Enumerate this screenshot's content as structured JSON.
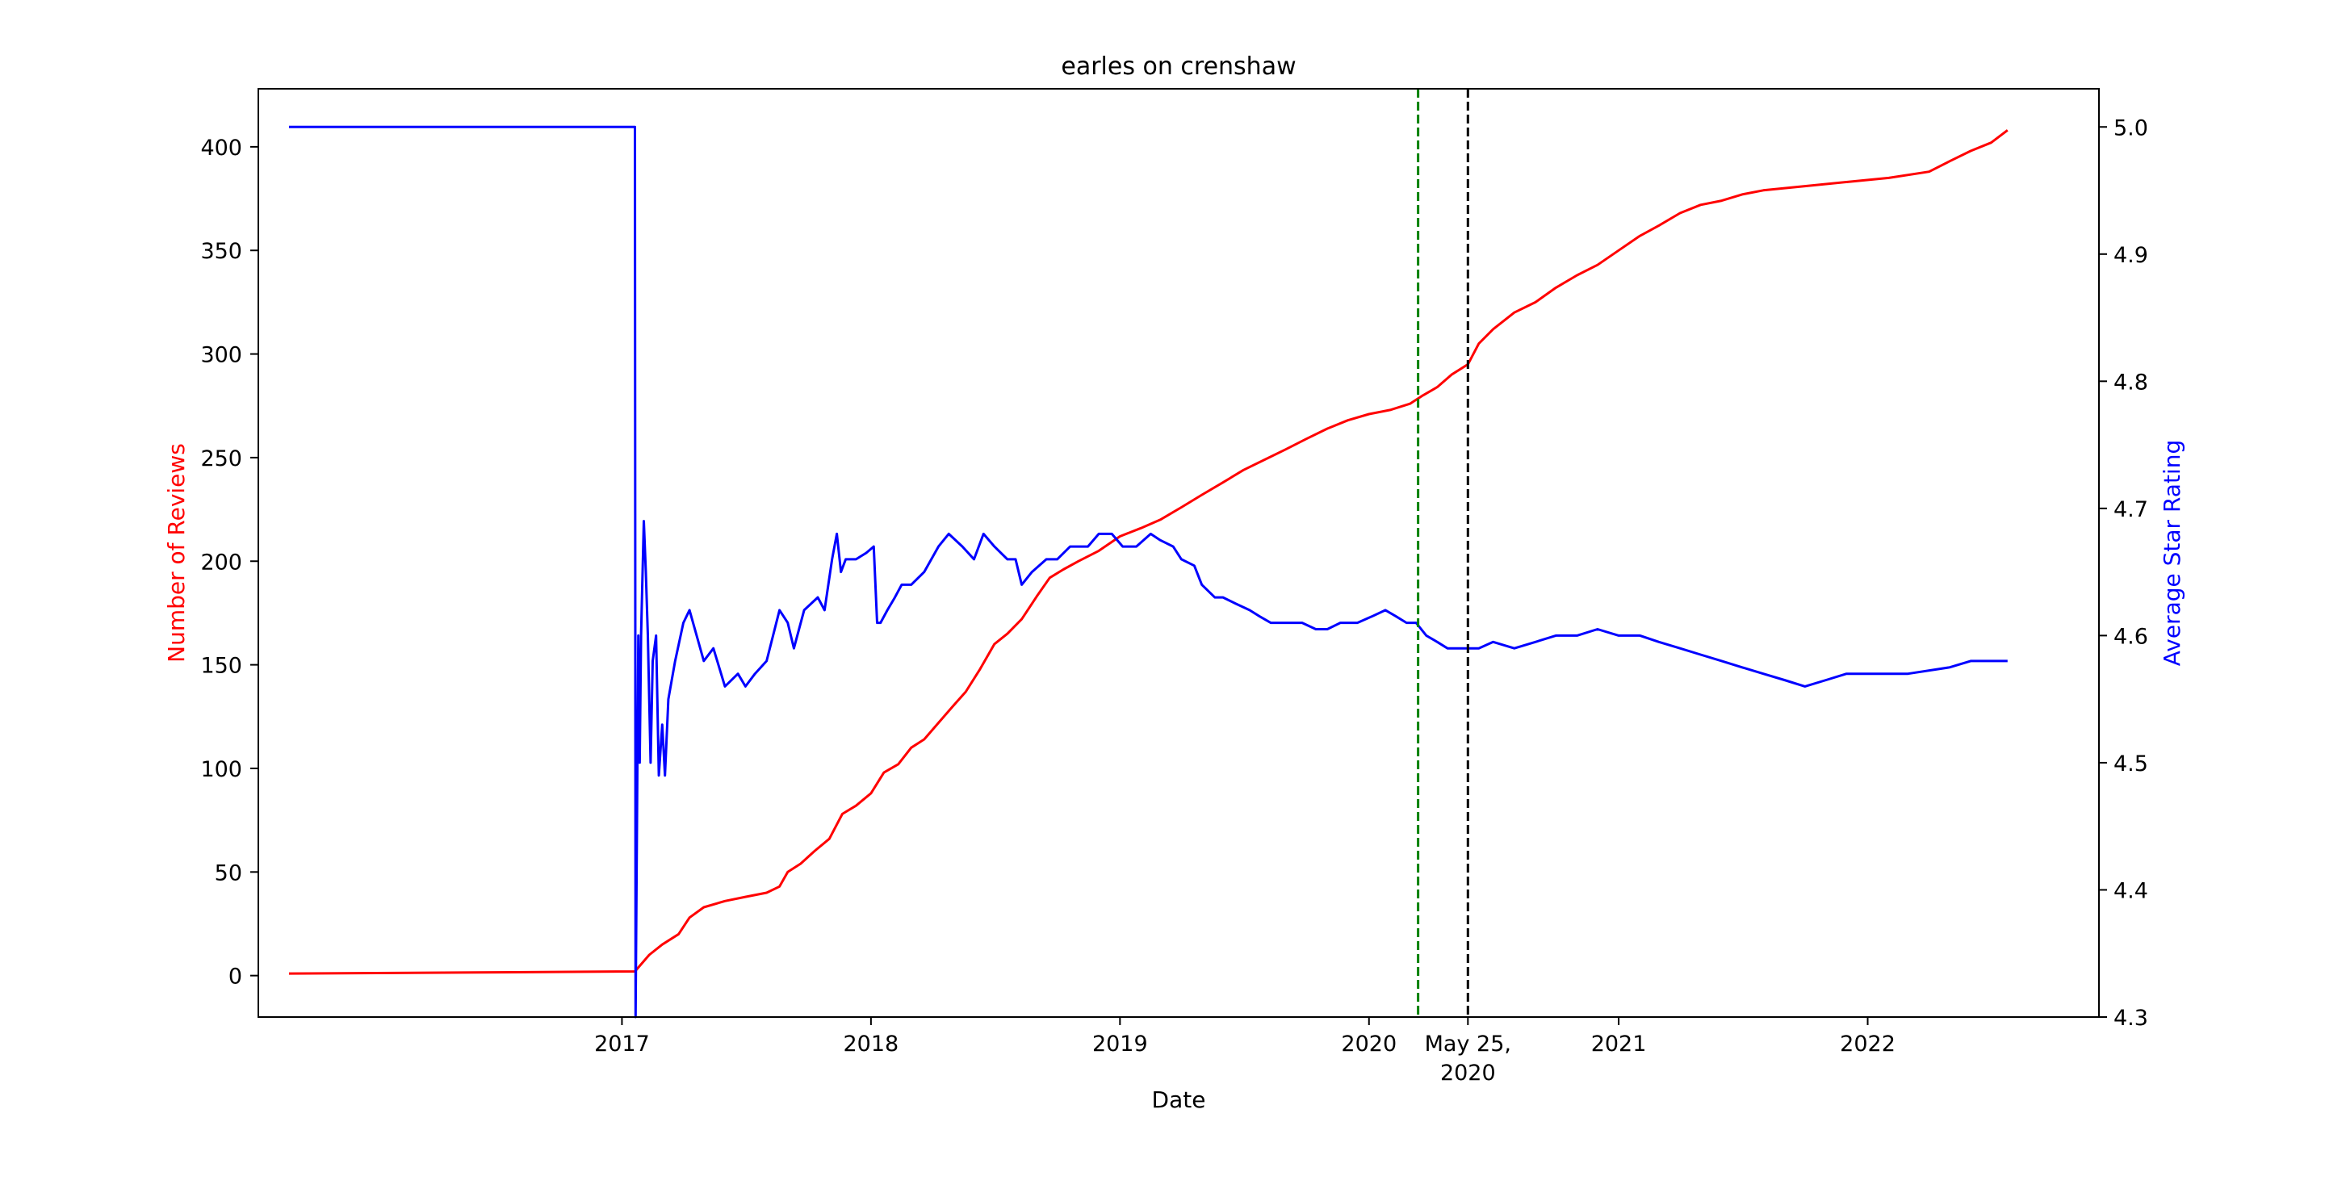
{
  "chart_data": {
    "type": "line",
    "title": "earles on crenshaw",
    "xlabel": "Date",
    "ylabel_left": "Number of Reviews",
    "ylabel_right": "Average Star Rating",
    "xlim": [
      "2015-07-18",
      "2022-12-06"
    ],
    "ylim_left": [
      -20,
      428
    ],
    "ylim_right": [
      4.3,
      5.03
    ],
    "x_ticks": [
      {
        "date": "2017-01-01",
        "label": "2017"
      },
      {
        "date": "2018-01-01",
        "label": "2018"
      },
      {
        "date": "2019-01-01",
        "label": "2019"
      },
      {
        "date": "2020-01-01",
        "label": "2020"
      },
      {
        "date": "2020-05-25",
        "label": "May 25,\n2020"
      },
      {
        "date": "2021-01-01",
        "label": "2021"
      },
      {
        "date": "2022-01-01",
        "label": "2022"
      }
    ],
    "y_ticks_left": [
      "0",
      "50",
      "100",
      "150",
      "200",
      "250",
      "300",
      "350",
      "400"
    ],
    "y_ticks_right": [
      "4.3",
      "4.4",
      "4.5",
      "4.6",
      "4.7",
      "4.8",
      "4.9",
      "5.0"
    ],
    "vlines": [
      {
        "date": "2020-03-13",
        "color": "#008000",
        "style": "dashed"
      },
      {
        "date": "2020-05-25",
        "color": "#000000",
        "style": "dashed"
      }
    ],
    "grid": false,
    "colors": {
      "reviews": "#ff0000",
      "rating": "#0000ff",
      "left_label": "#ff0000",
      "right_label": "#0000ff"
    },
    "series": [
      {
        "axis": "left",
        "color": "#ff0000",
        "points": [
          [
            "2015-09-01",
            1
          ],
          [
            "2016-06-01",
            1.5
          ],
          [
            "2017-01-20",
            2
          ],
          [
            "2017-02-10",
            10
          ],
          [
            "2017-03-01",
            15
          ],
          [
            "2017-03-25",
            20
          ],
          [
            "2017-04-10",
            28
          ],
          [
            "2017-05-01",
            33
          ],
          [
            "2017-06-01",
            36
          ],
          [
            "2017-07-01",
            38
          ],
          [
            "2017-08-01",
            40
          ],
          [
            "2017-08-20",
            43
          ],
          [
            "2017-09-01",
            50
          ],
          [
            "2017-09-20",
            54
          ],
          [
            "2017-10-10",
            60
          ],
          [
            "2017-11-01",
            66
          ],
          [
            "2017-11-20",
            78
          ],
          [
            "2017-12-10",
            82
          ],
          [
            "2018-01-01",
            88
          ],
          [
            "2018-01-20",
            98
          ],
          [
            "2018-02-10",
            102
          ],
          [
            "2018-03-01",
            110
          ],
          [
            "2018-03-20",
            114
          ],
          [
            "2018-04-10",
            122
          ],
          [
            "2018-05-01",
            130
          ],
          [
            "2018-05-20",
            137
          ],
          [
            "2018-06-10",
            148
          ],
          [
            "2018-07-01",
            160
          ],
          [
            "2018-07-20",
            165
          ],
          [
            "2018-08-10",
            172
          ],
          [
            "2018-09-01",
            183
          ],
          [
            "2018-09-20",
            192
          ],
          [
            "2018-10-10",
            196
          ],
          [
            "2018-11-01",
            200
          ],
          [
            "2018-12-01",
            205
          ],
          [
            "2019-01-01",
            212
          ],
          [
            "2019-02-01",
            216
          ],
          [
            "2019-03-01",
            220
          ],
          [
            "2019-04-01",
            226
          ],
          [
            "2019-05-01",
            232
          ],
          [
            "2019-06-01",
            238
          ],
          [
            "2019-07-01",
            244
          ],
          [
            "2019-08-01",
            249
          ],
          [
            "2019-09-01",
            254
          ],
          [
            "2019-10-01",
            259
          ],
          [
            "2019-11-01",
            264
          ],
          [
            "2019-12-01",
            268
          ],
          [
            "2020-01-01",
            271
          ],
          [
            "2020-02-01",
            273
          ],
          [
            "2020-03-01",
            276
          ],
          [
            "2020-03-20",
            280
          ],
          [
            "2020-04-10",
            284
          ],
          [
            "2020-05-01",
            290
          ],
          [
            "2020-05-25",
            295
          ],
          [
            "2020-06-10",
            305
          ],
          [
            "2020-07-01",
            312
          ],
          [
            "2020-08-01",
            320
          ],
          [
            "2020-09-01",
            325
          ],
          [
            "2020-10-01",
            332
          ],
          [
            "2020-11-01",
            338
          ],
          [
            "2020-12-01",
            343
          ],
          [
            "2021-01-01",
            350
          ],
          [
            "2021-02-01",
            357
          ],
          [
            "2021-03-01",
            362
          ],
          [
            "2021-04-01",
            368
          ],
          [
            "2021-05-01",
            372
          ],
          [
            "2021-06-01",
            374
          ],
          [
            "2021-07-01",
            377
          ],
          [
            "2021-08-01",
            379
          ],
          [
            "2021-10-01",
            381
          ],
          [
            "2021-12-01",
            383
          ],
          [
            "2022-02-01",
            385
          ],
          [
            "2022-04-01",
            388
          ],
          [
            "2022-05-01",
            393
          ],
          [
            "2022-06-01",
            398
          ],
          [
            "2022-07-01",
            402
          ],
          [
            "2022-07-25",
            408
          ]
        ]
      },
      {
        "axis": "right",
        "color": "#0000ff",
        "points": [
          [
            "2015-09-01",
            5.0
          ],
          [
            "2017-01-20",
            5.0
          ],
          [
            "2017-01-21",
            4.3
          ],
          [
            "2017-01-25",
            4.6
          ],
          [
            "2017-01-27",
            4.5
          ],
          [
            "2017-01-29",
            4.6
          ],
          [
            "2017-02-02",
            4.69
          ],
          [
            "2017-02-05",
            4.65
          ],
          [
            "2017-02-08",
            4.6
          ],
          [
            "2017-02-12",
            4.5
          ],
          [
            "2017-02-15",
            4.58
          ],
          [
            "2017-02-20",
            4.6
          ],
          [
            "2017-02-24",
            4.49
          ],
          [
            "2017-03-01",
            4.53
          ],
          [
            "2017-03-05",
            4.49
          ],
          [
            "2017-03-10",
            4.55
          ],
          [
            "2017-03-20",
            4.58
          ],
          [
            "2017-04-01",
            4.61
          ],
          [
            "2017-04-10",
            4.62
          ],
          [
            "2017-05-01",
            4.58
          ],
          [
            "2017-05-15",
            4.59
          ],
          [
            "2017-06-01",
            4.56
          ],
          [
            "2017-06-20",
            4.57
          ],
          [
            "2017-07-01",
            4.56
          ],
          [
            "2017-07-15",
            4.57
          ],
          [
            "2017-08-01",
            4.58
          ],
          [
            "2017-08-20",
            4.62
          ],
          [
            "2017-09-01",
            4.61
          ],
          [
            "2017-09-10",
            4.59
          ],
          [
            "2017-09-25",
            4.62
          ],
          [
            "2017-10-15",
            4.63
          ],
          [
            "2017-10-25",
            4.62
          ],
          [
            "2017-11-05",
            4.66
          ],
          [
            "2017-11-12",
            4.68
          ],
          [
            "2017-11-18",
            4.65
          ],
          [
            "2017-11-25",
            4.66
          ],
          [
            "2017-12-10",
            4.66
          ],
          [
            "2017-12-25",
            4.665
          ],
          [
            "2018-01-05",
            4.67
          ],
          [
            "2018-01-10",
            4.61
          ],
          [
            "2018-01-15",
            4.61
          ],
          [
            "2018-01-25",
            4.62
          ],
          [
            "2018-02-05",
            4.63
          ],
          [
            "2018-02-15",
            4.64
          ],
          [
            "2018-03-01",
            4.64
          ],
          [
            "2018-03-20",
            4.65
          ],
          [
            "2018-04-10",
            4.67
          ],
          [
            "2018-04-25",
            4.68
          ],
          [
            "2018-05-15",
            4.67
          ],
          [
            "2018-06-01",
            4.66
          ],
          [
            "2018-06-15",
            4.68
          ],
          [
            "2018-07-01",
            4.67
          ],
          [
            "2018-07-20",
            4.66
          ],
          [
            "2018-08-01",
            4.66
          ],
          [
            "2018-08-10",
            4.64
          ],
          [
            "2018-08-25",
            4.65
          ],
          [
            "2018-09-15",
            4.66
          ],
          [
            "2018-10-01",
            4.66
          ],
          [
            "2018-10-20",
            4.67
          ],
          [
            "2018-11-15",
            4.67
          ],
          [
            "2018-12-01",
            4.68
          ],
          [
            "2018-12-20",
            4.68
          ],
          [
            "2019-01-05",
            4.67
          ],
          [
            "2019-01-25",
            4.67
          ],
          [
            "2019-02-15",
            4.68
          ],
          [
            "2019-03-01",
            4.675
          ],
          [
            "2019-03-20",
            4.67
          ],
          [
            "2019-04-01",
            4.66
          ],
          [
            "2019-04-20",
            4.655
          ],
          [
            "2019-05-01",
            4.64
          ],
          [
            "2019-05-20",
            4.63
          ],
          [
            "2019-06-01",
            4.63
          ],
          [
            "2019-06-20",
            4.625
          ],
          [
            "2019-07-10",
            4.62
          ],
          [
            "2019-07-25",
            4.615
          ],
          [
            "2019-08-10",
            4.61
          ],
          [
            "2019-09-01",
            4.61
          ],
          [
            "2019-09-25",
            4.61
          ],
          [
            "2019-10-15",
            4.605
          ],
          [
            "2019-11-01",
            4.605
          ],
          [
            "2019-11-20",
            4.61
          ],
          [
            "2019-12-15",
            4.61
          ],
          [
            "2020-01-05",
            4.615
          ],
          [
            "2020-01-25",
            4.62
          ],
          [
            "2020-02-10",
            4.615
          ],
          [
            "2020-02-25",
            4.61
          ],
          [
            "2020-03-10",
            4.61
          ],
          [
            "2020-03-25",
            4.6
          ],
          [
            "2020-04-10",
            4.595
          ],
          [
            "2020-04-25",
            4.59
          ],
          [
            "2020-05-10",
            4.59
          ],
          [
            "2020-05-25",
            4.59
          ],
          [
            "2020-06-10",
            4.59
          ],
          [
            "2020-07-01",
            4.595
          ],
          [
            "2020-08-01",
            4.59
          ],
          [
            "2020-09-01",
            4.595
          ],
          [
            "2020-10-01",
            4.6
          ],
          [
            "2020-11-01",
            4.6
          ],
          [
            "2020-12-01",
            4.605
          ],
          [
            "2021-01-01",
            4.6
          ],
          [
            "2021-02-01",
            4.6
          ],
          [
            "2021-03-01",
            4.595
          ],
          [
            "2021-04-01",
            4.59
          ],
          [
            "2021-05-01",
            4.585
          ],
          [
            "2021-06-01",
            4.58
          ],
          [
            "2021-07-01",
            4.575
          ],
          [
            "2021-08-01",
            4.57
          ],
          [
            "2021-09-01",
            4.565
          ],
          [
            "2021-10-01",
            4.56
          ],
          [
            "2021-11-01",
            4.565
          ],
          [
            "2021-12-01",
            4.57
          ],
          [
            "2022-01-01",
            4.57
          ],
          [
            "2022-03-01",
            4.57
          ],
          [
            "2022-05-01",
            4.575
          ],
          [
            "2022-06-01",
            4.58
          ],
          [
            "2022-07-25",
            4.58
          ]
        ]
      }
    ]
  }
}
